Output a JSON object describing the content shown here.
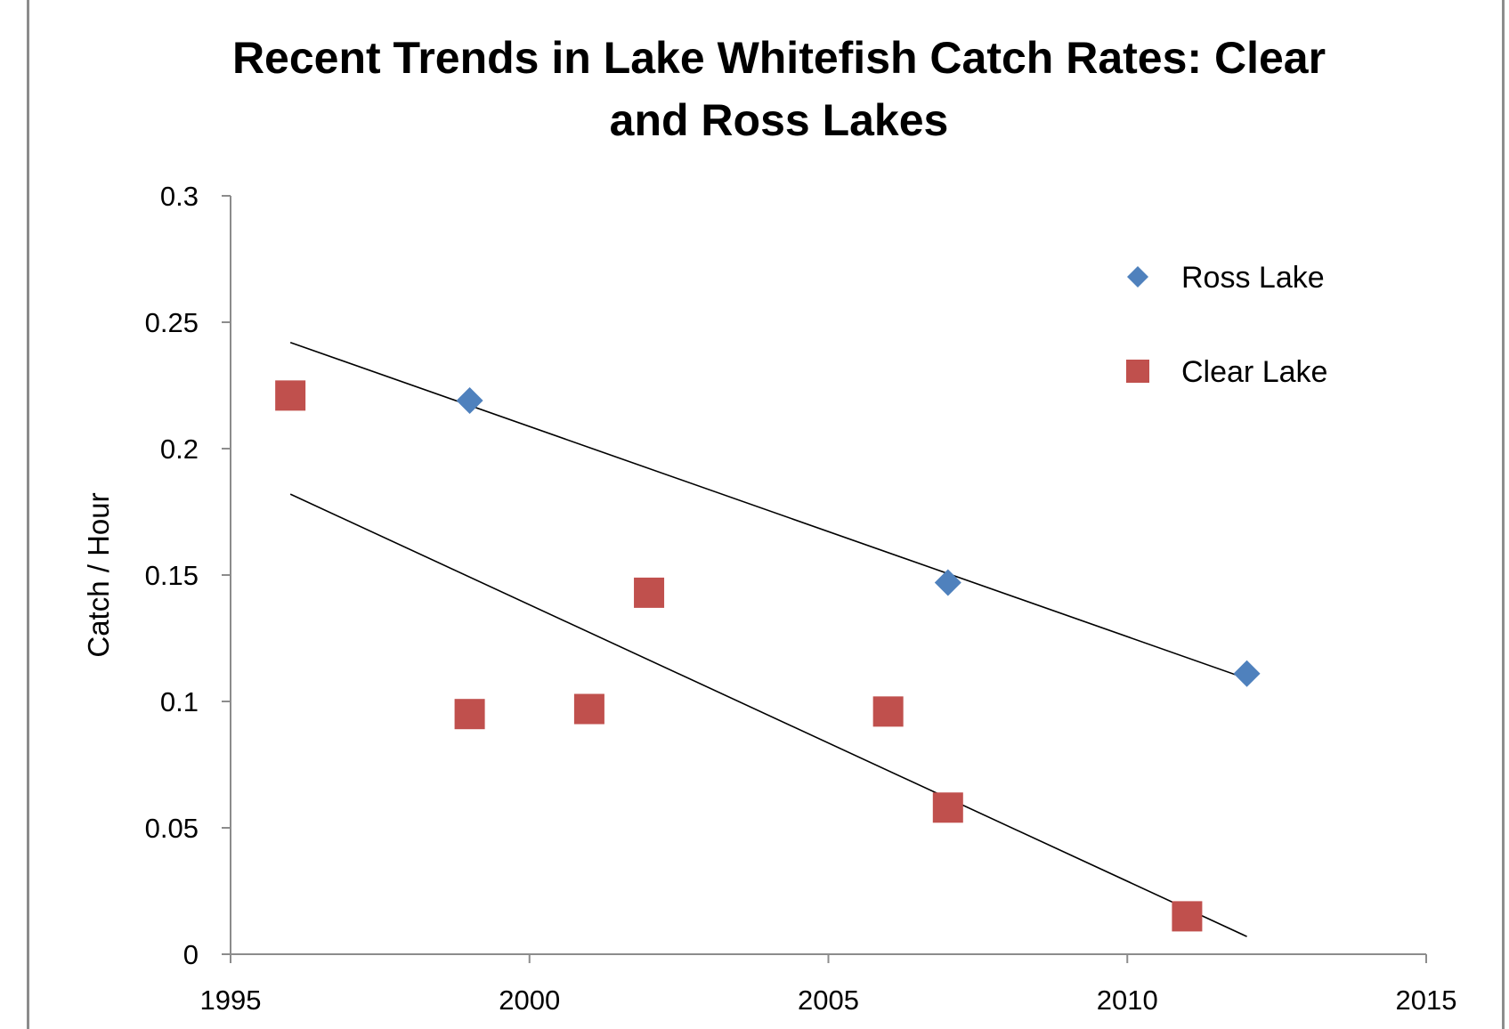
{
  "chart_data": {
    "type": "scatter",
    "title_lines": [
      "Recent Trends in Lake Whitefish Catch Rates: Clear",
      "and Ross Lakes"
    ],
    "xlabel": "",
    "ylabel": "Catch / Hour",
    "xlim": [
      1995,
      2015
    ],
    "ylim": [
      0,
      0.3
    ],
    "xticks": [
      "1995",
      "2000",
      "2005",
      "2010",
      "2015"
    ],
    "yticks": [
      "0",
      "0.05",
      "0.1",
      "0.15",
      "0.2",
      "0.25",
      "0.3"
    ],
    "grid": false,
    "legend_position": "top-right",
    "series": [
      {
        "name": "Ross Lake",
        "marker": "diamond",
        "color": "#4f81bd",
        "points": [
          [
            1999,
            0.219
          ],
          [
            2007,
            0.147
          ],
          [
            2012,
            0.111
          ]
        ],
        "trendline": [
          [
            1996,
            0.242
          ],
          [
            2012,
            0.109
          ]
        ]
      },
      {
        "name": "Clear Lake",
        "marker": "square",
        "color": "#c0504d",
        "points": [
          [
            1996,
            0.221
          ],
          [
            1999,
            0.095
          ],
          [
            2001,
            0.097
          ],
          [
            2002,
            0.143
          ],
          [
            2006,
            0.096
          ],
          [
            2007,
            0.058
          ],
          [
            2011,
            0.015
          ]
        ],
        "trendline": [
          [
            1996,
            0.182
          ],
          [
            2012,
            0.007
          ]
        ]
      }
    ]
  }
}
